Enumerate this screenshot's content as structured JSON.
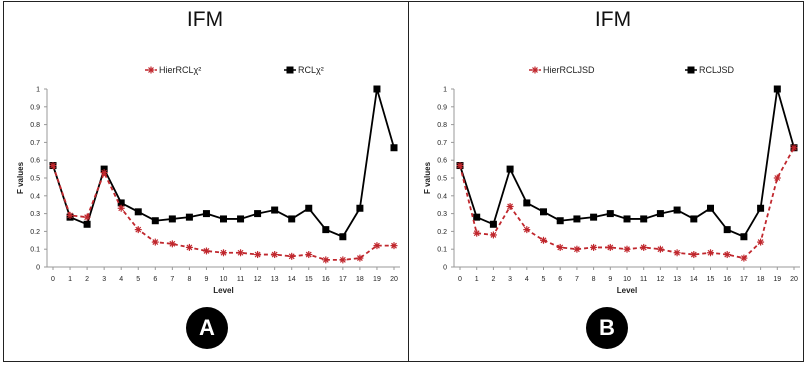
{
  "chart_data": [
    {
      "type": "line",
      "title": "IFM",
      "xlabel": "Level",
      "ylabel": "F values",
      "badge": "A",
      "x": [
        0,
        1,
        2,
        3,
        4,
        5,
        6,
        7,
        8,
        9,
        10,
        11,
        12,
        13,
        14,
        15,
        16,
        17,
        18,
        19,
        20
      ],
      "y_ticks": [
        "0",
        "0.1",
        "0.2",
        "0.3",
        "0.4",
        "0.5",
        "0.6",
        "0.7",
        "0.8",
        "0.9",
        "1"
      ],
      "ylim": [
        0,
        1
      ],
      "legend_position": "top",
      "series": [
        {
          "name": "HierRCLχ²",
          "color": "#c0272d",
          "style": "dashed",
          "marker": "asterisk",
          "values": [
            0.57,
            0.29,
            0.28,
            0.53,
            0.33,
            0.21,
            0.14,
            0.13,
            0.11,
            0.09,
            0.08,
            0.08,
            0.07,
            0.07,
            0.06,
            0.07,
            0.04,
            0.04,
            0.05,
            0.12,
            0.12
          ]
        },
        {
          "name": "RCLχ²",
          "color": "#000000",
          "style": "solid",
          "marker": "square",
          "values": [
            0.57,
            0.28,
            0.24,
            0.55,
            0.36,
            0.31,
            0.26,
            0.27,
            0.28,
            0.3,
            0.27,
            0.27,
            0.3,
            0.32,
            0.27,
            0.33,
            0.21,
            0.17,
            0.33,
            1.0,
            0.67
          ]
        }
      ]
    },
    {
      "type": "line",
      "title": "IFM",
      "xlabel": "Level",
      "ylabel": "F values",
      "badge": "B",
      "x": [
        0,
        1,
        2,
        3,
        4,
        5,
        6,
        7,
        8,
        9,
        10,
        11,
        12,
        13,
        14,
        15,
        16,
        17,
        18,
        19,
        20
      ],
      "y_ticks": [
        "0",
        "0.1",
        "0.2",
        "0.3",
        "0.4",
        "0.5",
        "0.6",
        "0.7",
        "0.8",
        "0.9",
        "1"
      ],
      "ylim": [
        0,
        1
      ],
      "legend_position": "top",
      "series": [
        {
          "name": "HierRCLJSD",
          "color": "#c0272d",
          "style": "dashed",
          "marker": "asterisk",
          "values": [
            0.57,
            0.19,
            0.18,
            0.34,
            0.21,
            0.15,
            0.11,
            0.1,
            0.11,
            0.11,
            0.1,
            0.11,
            0.1,
            0.08,
            0.07,
            0.08,
            0.07,
            0.05,
            0.14,
            0.5,
            0.67
          ]
        },
        {
          "name": "RCLJSD",
          "color": "#000000",
          "style": "solid",
          "marker": "square",
          "values": [
            0.57,
            0.28,
            0.24,
            0.55,
            0.36,
            0.31,
            0.26,
            0.27,
            0.28,
            0.3,
            0.27,
            0.27,
            0.3,
            0.32,
            0.27,
            0.33,
            0.21,
            0.17,
            0.33,
            1.0,
            0.67
          ]
        }
      ]
    }
  ]
}
